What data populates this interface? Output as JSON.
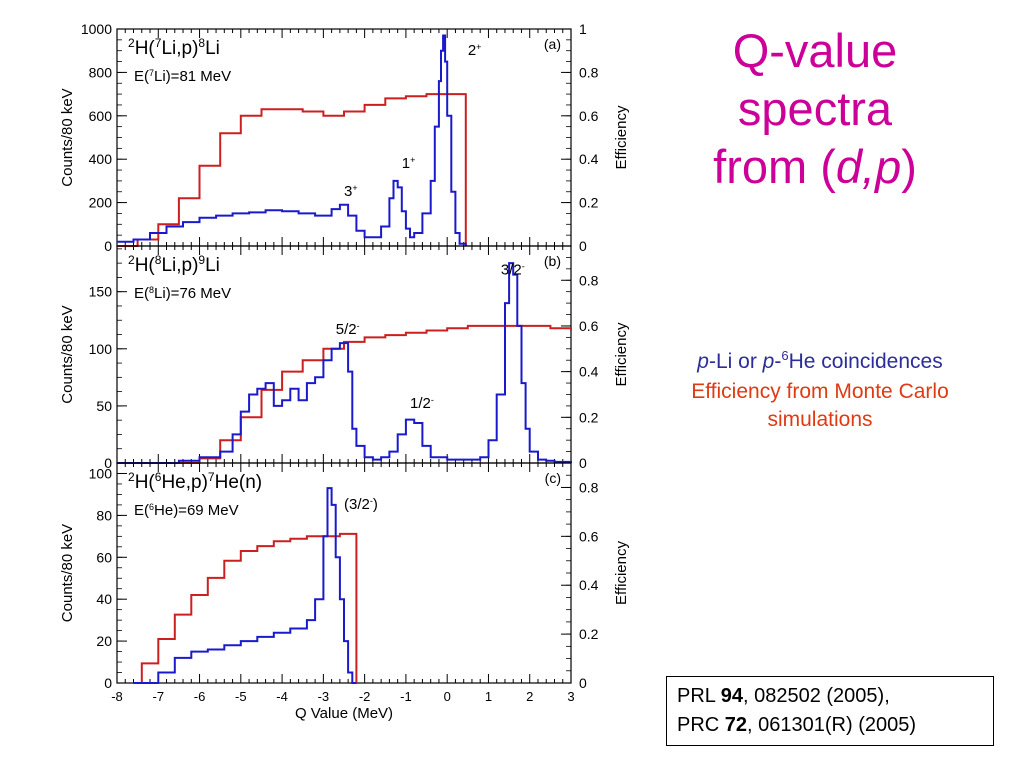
{
  "page": {
    "title_line1": "Q-value",
    "title_line2": "spectra",
    "title_line3_pre": "from (",
    "title_line3_d": "d",
    "title_line3_comma": ",",
    "title_line3_p": "p",
    "title_line3_post": ")",
    "note1_p1": "p",
    "note1_mid": "-Li or ",
    "note1_p2": "p",
    "note1_dash": "-",
    "note1_sup": "6",
    "note1_end": "He coincidences",
    "note2": "Efficiency from Monte Carlo simulations",
    "ref1_pre": "PRL ",
    "ref1_vol": "94",
    "ref1_post": ", 082502 (2005),",
    "ref2_pre": "PRC ",
    "ref2_vol": "72",
    "ref2_post": ", 061301(R) (2005)"
  },
  "chart_data": [
    {
      "type": "line",
      "panel": "(a)",
      "reaction": {
        "a": "2",
        "b": "H(",
        "c": "7",
        "d": "Li,p)",
        "e": "8",
        "f": "Li"
      },
      "energy": {
        "a": "E(",
        "b": "7",
        "c": "Li)=81 MeV"
      },
      "ylabel": "Counts/80 keV",
      "ylabel_right": "Efficiency",
      "ylim": [
        0,
        1000
      ],
      "ylim_right": [
        0,
        1
      ],
      "xlim": [
        -8,
        3
      ],
      "yticks": [
        "0",
        "200",
        "400",
        "600",
        "800",
        "1000"
      ],
      "yticks_right": [
        "0",
        "0.2",
        "0.4",
        "0.6",
        "0.8",
        "1"
      ],
      "state_labels": [
        {
          "text": "2",
          "sup": "+",
          "x": 0.5,
          "y": 880
        },
        {
          "text": "1",
          "sup": "+",
          "x": -1.1,
          "y": 360
        },
        {
          "text": "3",
          "sup": "+",
          "x": -2.5,
          "y": 230
        }
      ],
      "counts_x": [
        -8.0,
        -7.6,
        -7.2,
        -6.8,
        -6.4,
        -6.0,
        -5.6,
        -5.2,
        -4.8,
        -4.4,
        -4.0,
        -3.6,
        -3.2,
        -2.8,
        -2.6,
        -2.4,
        -2.2,
        -2.0,
        -1.8,
        -1.6,
        -1.4,
        -1.3,
        -1.2,
        -1.1,
        -1.0,
        -0.9,
        -0.8,
        -0.6,
        -0.4,
        -0.3,
        -0.2,
        -0.15,
        -0.1,
        -0.05,
        0.0,
        0.1,
        0.2,
        0.3,
        0.45
      ],
      "counts_y": [
        20,
        30,
        60,
        90,
        110,
        130,
        140,
        150,
        155,
        165,
        160,
        150,
        140,
        170,
        190,
        140,
        70,
        40,
        40,
        90,
        220,
        300,
        270,
        160,
        80,
        40,
        60,
        150,
        300,
        550,
        760,
        900,
        970,
        850,
        600,
        250,
        60,
        10,
        0
      ],
      "efficiency_x": [
        -8.0,
        -7.5,
        -7.0,
        -6.5,
        -6.0,
        -5.5,
        -5.0,
        -4.5,
        -4.0,
        -3.5,
        -3.0,
        -2.5,
        -2.0,
        -1.5,
        -1.0,
        -0.5,
        0.0,
        0.45,
        0.45
      ],
      "efficiency_y": [
        0.0,
        0.03,
        0.1,
        0.22,
        0.37,
        0.52,
        0.6,
        0.63,
        0.63,
        0.62,
        0.6,
        0.62,
        0.65,
        0.68,
        0.69,
        0.7,
        0.7,
        0.7,
        0.0
      ]
    },
    {
      "type": "line",
      "panel": "(b)",
      "reaction": {
        "a": "2",
        "b": "H(",
        "c": "8",
        "d": "Li,p)",
        "e": "9",
        "f": "Li"
      },
      "energy": {
        "a": "E(",
        "b": "8",
        "c": "Li)=76 MeV"
      },
      "ylabel": "Counts/80 keV",
      "ylabel_right": "Efficiency",
      "ylim": [
        0,
        190
      ],
      "ylim_right": [
        0,
        0.95
      ],
      "xlim": [
        -8,
        3
      ],
      "yticks": [
        "0",
        "50",
        "100",
        "150"
      ],
      "yticks_right": [
        "0",
        "0.2",
        "0.4",
        "0.6",
        "0.8"
      ],
      "state_labels": [
        {
          "text": "3/2",
          "sup": "-",
          "x": 1.3,
          "y": 165
        },
        {
          "text": "5/2",
          "sup": "-",
          "x": -2.7,
          "y": 113
        },
        {
          "text": "1/2",
          "sup": "-",
          "x": -0.9,
          "y": 48
        }
      ],
      "counts_x": [
        -8.0,
        -7.5,
        -7.0,
        -6.5,
        -6.0,
        -5.5,
        -5.2,
        -5.0,
        -4.8,
        -4.6,
        -4.4,
        -4.2,
        -4.0,
        -3.8,
        -3.6,
        -3.4,
        -3.2,
        -3.0,
        -2.8,
        -2.6,
        -2.4,
        -2.3,
        -2.2,
        -2.0,
        -1.8,
        -1.6,
        -1.4,
        -1.2,
        -1.0,
        -0.8,
        -0.6,
        -0.4,
        0.0,
        0.4,
        0.8,
        1.0,
        1.2,
        1.4,
        1.5,
        1.6,
        1.7,
        1.8,
        1.9,
        2.0,
        2.2,
        2.4,
        2.6,
        3.0
      ],
      "counts_y": [
        0,
        0,
        0,
        2,
        5,
        10,
        25,
        45,
        60,
        65,
        70,
        50,
        55,
        65,
        55,
        70,
        75,
        90,
        100,
        105,
        80,
        30,
        15,
        5,
        3,
        5,
        10,
        25,
        38,
        35,
        15,
        5,
        3,
        3,
        5,
        20,
        60,
        140,
        175,
        165,
        120,
        70,
        30,
        10,
        3,
        2,
        1,
        0
      ],
      "efficiency_x": [
        -8.0,
        -7.5,
        -7.0,
        -6.5,
        -6.0,
        -5.5,
        -5.0,
        -4.5,
        -4.0,
        -3.5,
        -3.0,
        -2.5,
        -2.0,
        -1.5,
        -1.0,
        -0.5,
        0.0,
        0.5,
        1.0,
        1.5,
        2.0,
        2.5,
        3.0
      ],
      "efficiency_y": [
        0.0,
        0.0,
        0.0,
        0.0,
        0.02,
        0.1,
        0.2,
        0.32,
        0.4,
        0.45,
        0.5,
        0.53,
        0.55,
        0.56,
        0.57,
        0.58,
        0.59,
        0.6,
        0.6,
        0.6,
        0.6,
        0.59,
        0.58
      ]
    },
    {
      "type": "line",
      "panel": "(c)",
      "reaction": {
        "a": "2",
        "b": "H(",
        "c": "6",
        "d": "He,p)",
        "e": "7",
        "f": "He(n)"
      },
      "energy": {
        "a": "E(",
        "b": "6",
        "c": "He)=69 MeV"
      },
      "ylabel": "Counts/80 keV",
      "ylabel_right": "Efficiency",
      "xlabel": "Q Value (MeV)",
      "ylim": [
        0,
        105
      ],
      "ylim_right": [
        0,
        0.9
      ],
      "xlim": [
        -8,
        3
      ],
      "xticks": [
        "-8",
        "-7",
        "-6",
        "-5",
        "-4",
        "-3",
        "-2",
        "-1",
        "0",
        "1",
        "2",
        "3"
      ],
      "yticks": [
        "0",
        "20",
        "40",
        "60",
        "80",
        "100"
      ],
      "yticks_right": [
        "0",
        "0.2",
        "0.4",
        "0.6",
        "0.8"
      ],
      "state_labels": [
        {
          "text": "(3/2",
          "sup": "-",
          "close": ")",
          "x": -2.5,
          "y": 83
        }
      ],
      "counts_x": [
        -7.6,
        -7.0,
        -6.6,
        -6.2,
        -5.8,
        -5.4,
        -5.0,
        -4.6,
        -4.2,
        -3.8,
        -3.4,
        -3.2,
        -3.0,
        -2.9,
        -2.8,
        -2.7,
        -2.6,
        -2.5,
        -2.4,
        -2.3,
        -2.2
      ],
      "counts_y": [
        0,
        5,
        12,
        15,
        16,
        18,
        20,
        22,
        24,
        26,
        30,
        40,
        70,
        93,
        85,
        60,
        40,
        20,
        5,
        0,
        0
      ],
      "efficiency_x": [
        -7.6,
        -7.4,
        -7.0,
        -6.6,
        -6.2,
        -5.8,
        -5.4,
        -5.0,
        -4.6,
        -4.2,
        -3.8,
        -3.4,
        -3.0,
        -2.6,
        -2.2,
        -2.2
      ],
      "efficiency_y": [
        0.0,
        0.08,
        0.18,
        0.28,
        0.36,
        0.43,
        0.5,
        0.54,
        0.56,
        0.58,
        0.59,
        0.6,
        0.6,
        0.61,
        0.61,
        0.0
      ]
    }
  ]
}
